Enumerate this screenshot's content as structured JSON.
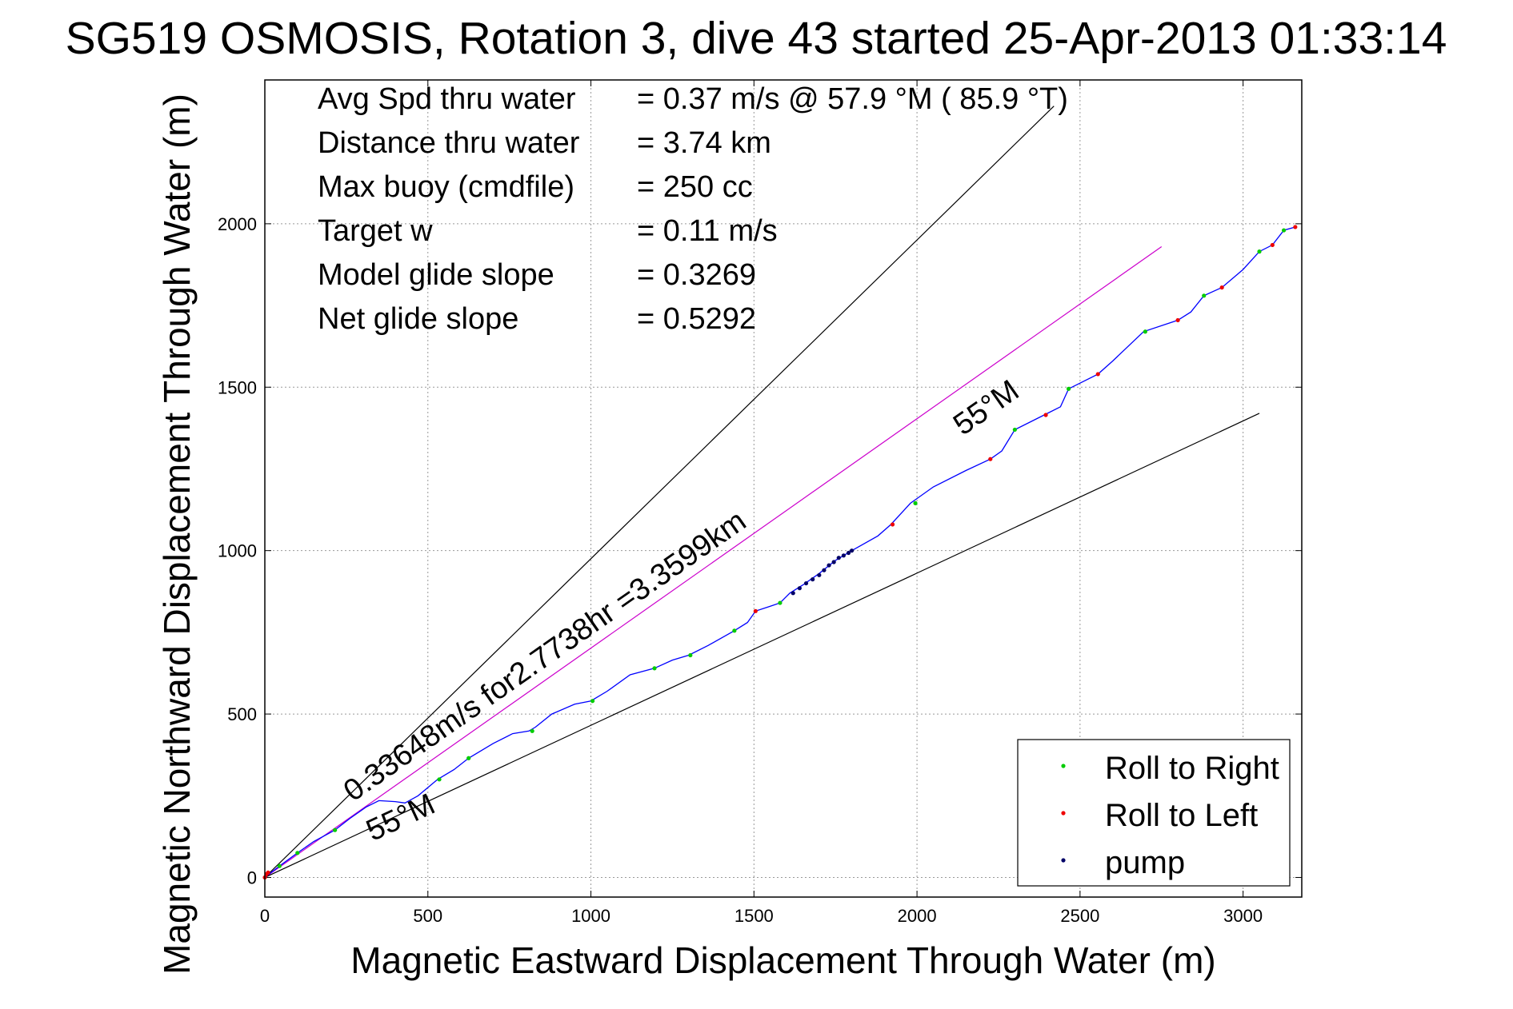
{
  "chart_data": {
    "type": "scatter",
    "title": "SG519 OSMOSIS, Rotation 3, dive 43 started 25-Apr-2013 01:33:14",
    "xlabel": "Magnetic Eastward Displacement Through Water (m)",
    "ylabel": "Magnetic Northward Displacement Through Water (m)",
    "xlim": [
      0,
      3180
    ],
    "ylim": [
      -60,
      2440
    ],
    "x_ticks": [
      0,
      500,
      1000,
      1500,
      2000,
      2500,
      3000
    ],
    "y_ticks": [
      0,
      500,
      1000,
      1500,
      2000
    ],
    "grid": true,
    "legend_position": "bottom-right",
    "stats_text": [
      {
        "label": "Avg Spd thru water",
        "value": "=  0.37 m/s @  57.9 °M ( 85.9 °T)"
      },
      {
        "label": "Distance thru water",
        "value": "=  3.74 km"
      },
      {
        "label": "Max buoy (cmdfile)",
        "value": "= 250 cc"
      },
      {
        "label": "Target w",
        "value": "= 0.11 m/s"
      },
      {
        "label": "Model glide slope",
        "value": "= 0.3269"
      },
      {
        "label": "Net glide slope",
        "value": "= 0.5292"
      }
    ],
    "annotations": [
      {
        "text": "0.33648m/s for2.7738hr =3.3599km",
        "x": 270,
        "y": 230,
        "angle_deg": 35
      },
      {
        "text": "55°M",
        "x": 330,
        "y": 110,
        "angle_deg": 25
      },
      {
        "text": "55°M",
        "x": 2140,
        "y": 1350,
        "angle_deg": 35
      }
    ],
    "reference_lines": [
      {
        "name": "steep-black",
        "x": [
          0,
          2420
        ],
        "y": [
          0,
          2360
        ],
        "color": "#000000"
      },
      {
        "name": "mean-magenta",
        "x": [
          0,
          2750
        ],
        "y": [
          0,
          1930
        ],
        "color": "#cc00cc"
      },
      {
        "name": "shallow-black",
        "x": [
          0,
          3050
        ],
        "y": [
          0,
          1420
        ],
        "color": "#000000"
      }
    ],
    "track": {
      "name": "track",
      "color": "#0000ff",
      "x": [
        0,
        45,
        100,
        150,
        215,
        260,
        310,
        350,
        400,
        430,
        470,
        530,
        580,
        625,
        700,
        760,
        810,
        830,
        880,
        950,
        1000,
        1050,
        1120,
        1195,
        1250,
        1300,
        1360,
        1440,
        1480,
        1505,
        1550,
        1580,
        1610,
        1650,
        1700,
        1750,
        1800,
        1880,
        1920,
        1980,
        2050,
        2150,
        2225,
        2260,
        2300,
        2400,
        2440,
        2465,
        2555,
        2600,
        2695,
        2800,
        2840,
        2880,
        2935,
        3000,
        3050,
        3090,
        3125,
        3160
      ],
      "y": [
        0,
        35,
        75,
        110,
        145,
        180,
        215,
        235,
        232,
        228,
        250,
        300,
        330,
        365,
        410,
        440,
        448,
        460,
        500,
        530,
        540,
        570,
        620,
        640,
        665,
        680,
        710,
        755,
        780,
        815,
        830,
        840,
        870,
        895,
        930,
        970,
        1000,
        1045,
        1080,
        1145,
        1195,
        1245,
        1280,
        1305,
        1370,
        1420,
        1440,
        1495,
        1540,
        1580,
        1670,
        1705,
        1730,
        1780,
        1805,
        1860,
        1915,
        1935,
        1980,
        1990
      ]
    },
    "series": [
      {
        "name": "Roll to Right",
        "color": "#00cc00",
        "x": [
          45,
          100,
          215,
          535,
          625,
          820,
          1005,
          1195,
          1305,
          1440,
          1580,
          1995,
          2300,
          2465,
          2700,
          2880,
          3050,
          3125
        ],
        "y": [
          35,
          75,
          145,
          300,
          365,
          448,
          540,
          640,
          680,
          755,
          840,
          1145,
          1370,
          1495,
          1670,
          1780,
          1915,
          1980
        ]
      },
      {
        "name": "Roll to Left",
        "color": "#ee0000",
        "x": [
          0,
          5,
          10,
          1505,
          1925,
          2225,
          2395,
          2555,
          2800,
          2935,
          3090,
          3160
        ],
        "y": [
          0,
          10,
          15,
          815,
          1080,
          1280,
          1415,
          1540,
          1705,
          1805,
          1935,
          1990
        ]
      },
      {
        "name": "pump",
        "color": "#000066",
        "x": [
          1620,
          1640,
          1660,
          1680,
          1700,
          1715,
          1730,
          1745,
          1760,
          1775,
          1790,
          1800
        ],
        "y": [
          870,
          885,
          900,
          912,
          925,
          940,
          955,
          965,
          978,
          985,
          993,
          1000
        ]
      }
    ]
  }
}
